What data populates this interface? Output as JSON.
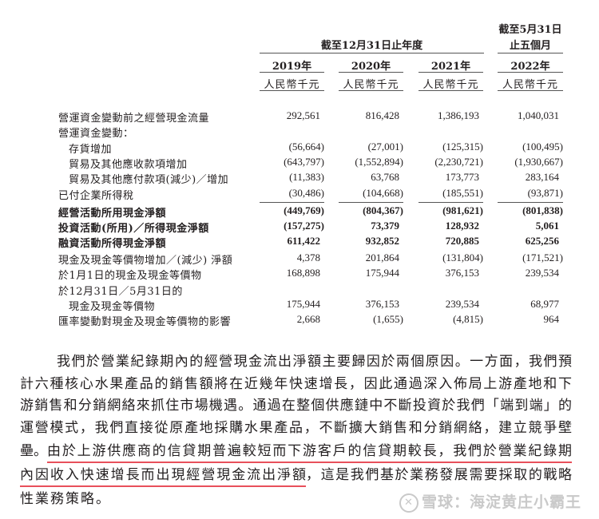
{
  "header": {
    "period_group": "截至12月31日止年度",
    "period_last_line1": "截至5月31日",
    "period_last_line2": "止五個月",
    "years": [
      "2019年",
      "2020年",
      "2021年",
      "2022年"
    ],
    "unit": "人民幣千元"
  },
  "rows": [
    {
      "label": "營運資金變動前之經營現金流量",
      "values": [
        "292,561",
        "816,428",
        "1,386,193",
        "1,040,031"
      ]
    },
    {
      "label": "營運資金變動：",
      "values": []
    },
    {
      "label": "存貨增加",
      "values": [
        "(56,664)",
        "(27,001)",
        "(125,315)",
        "(100,495)"
      ]
    },
    {
      "label": "貿易及其他應收款項增加",
      "values": [
        "(643,797)",
        "(1,552,894)",
        "(2,230,721)",
        "(1,930,667)"
      ]
    },
    {
      "label": "貿易及其他應付款項(減少)／增加",
      "values": [
        "(11,383)",
        "63,768",
        "173,773",
        "283,164"
      ]
    },
    {
      "label": "已付企業所得稅",
      "values": [
        "(30,486)",
        "(104,668)",
        "(185,551)",
        "(93,871)"
      ]
    },
    {
      "label": "經營活動所用現金淨額",
      "values": [
        "(449,769)",
        "(804,367)",
        "(981,621)",
        "(801,838)"
      ]
    },
    {
      "label": "投資活動(所用)／所得現金淨額",
      "values": [
        "(157,275)",
        "73,379",
        "128,932",
        "5,061"
      ]
    },
    {
      "label": "融資活動所得現金淨額",
      "values": [
        "611,422",
        "932,852",
        "720,885",
        "625,256"
      ]
    },
    {
      "label": "現金及現金等價物增加／(減少) 淨額",
      "values": [
        "4,378",
        "201,864",
        "(131,804)",
        "(171,521)"
      ]
    },
    {
      "label": "於1月1日的現金及現金等價物",
      "values": [
        "168,898",
        "175,944",
        "376,153",
        "239,534"
      ]
    },
    {
      "label": "於12月31日／5月31日的",
      "values": []
    },
    {
      "label": "現金及現金等價物",
      "values": [
        "175,944",
        "376,153",
        "239,534",
        "68,977"
      ]
    },
    {
      "label": "匯率變動對現金及現金等價物的影響",
      "values": [
        "2,668",
        "(1,655)",
        "(4,815)",
        "964"
      ]
    }
  ],
  "paragraph": {
    "line1": "我們於營業紀錄期內的經營現金流出淨額主要歸因於兩個原因。一方面，我們預",
    "line2": "計六種核心水果產品的銷售額將在近幾年快速增長，因此通過深入佈局上游產地和下",
    "line3": "游銷售和分銷網絡來抓住市場機遇。通過在整個供應鏈中不斷投資於我們「端到端」的",
    "line4": "運營模式，我們直接從原產地採購水果產品，不斷擴大銷售和分銷網絡，建立競爭壁",
    "line5_a": "壘。",
    "line5_b": "由於上游供應商的信貸期普遍較短而下游客戶的信貸期較長，我們於營業紀錄期",
    "line6_a": "內因收入快速增長而出現經營現金流出淨額",
    "line6_b": "，這是我們基於業務發展需要採取的戰略",
    "line7": "性業務策略。"
  },
  "highlight_color": "#e8505b",
  "watermark": "雪球：海淀黄庄小霸王"
}
